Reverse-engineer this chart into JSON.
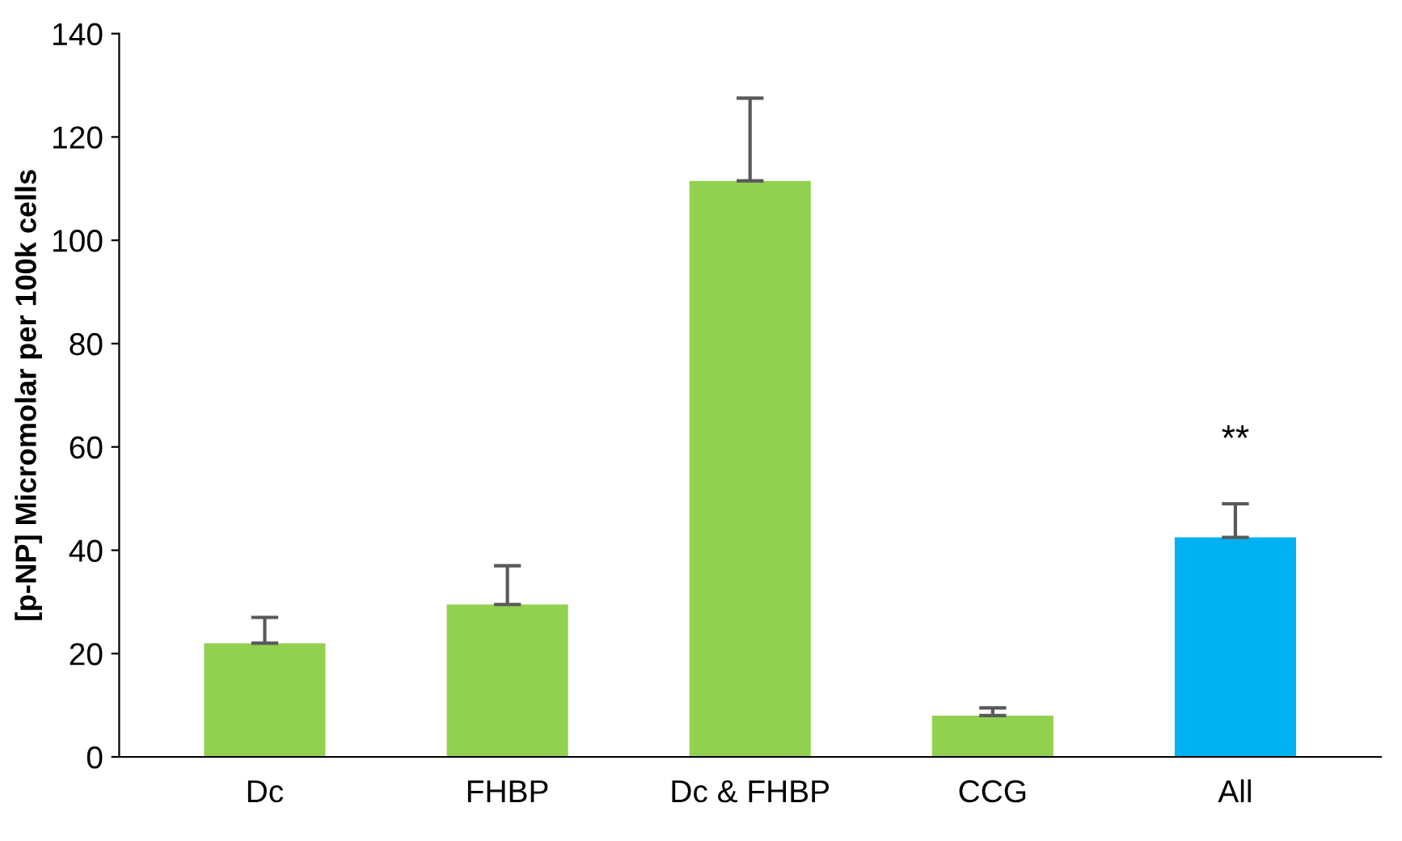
{
  "chart_data": {
    "type": "bar",
    "ylabel": "[p-NP] Micromolar per 100k cells",
    "categories": [
      "Dc",
      "FHBP",
      "Dc & FHBP",
      "CCG",
      "All"
    ],
    "values": [
      22,
      29.5,
      111.5,
      8,
      42.5
    ],
    "errors": [
      [
        22,
        27
      ],
      [
        29.5,
        37
      ],
      [
        111.5,
        127.5
      ],
      [
        8,
        9.5
      ],
      [
        42.5,
        49
      ]
    ],
    "colors": [
      "#92d050",
      "#92d050",
      "#92d050",
      "#92d050",
      "#00b0f0"
    ],
    "ylim": [
      0,
      140
    ],
    "yticks": [
      0,
      20,
      40,
      60,
      80,
      100,
      120,
      140
    ],
    "grid": false,
    "annotations": [
      "**"
    ]
  }
}
